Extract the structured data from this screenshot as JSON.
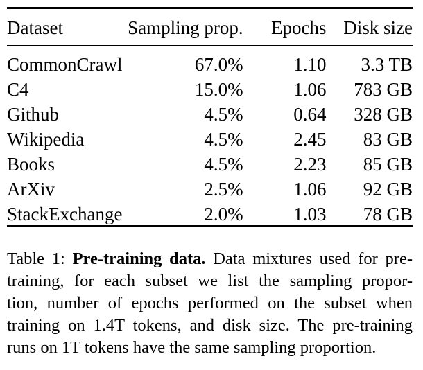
{
  "table": {
    "headers": [
      "Dataset",
      "Sampling prop.",
      "Epochs",
      "Disk size"
    ],
    "rows": [
      [
        "CommonCrawl",
        "67.0%",
        "1.10",
        "3.3 TB"
      ],
      [
        "C4",
        "15.0%",
        "1.06",
        "783 GB"
      ],
      [
        "Github",
        "4.5%",
        "0.64",
        "328 GB"
      ],
      [
        "Wikipedia",
        "4.5%",
        "2.45",
        "83 GB"
      ],
      [
        "Books",
        "4.5%",
        "2.23",
        "85 GB"
      ],
      [
        "ArXiv",
        "2.5%",
        "1.06",
        "92 GB"
      ],
      [
        "StackExchange",
        "2.0%",
        "1.03",
        "78 GB"
      ]
    ]
  },
  "caption": {
    "label": "Table 1:",
    "bold_title": "Pre-training data.",
    "lines": [
      " Data mixtures used for pre-",
      "training, for each subset we list the sampling propor-",
      "tion, number of epochs performed on the subset when",
      "training on 1.4T tokens, and disk size. The pre-training",
      "runs on 1T tokens have the same sampling proportion."
    ]
  }
}
